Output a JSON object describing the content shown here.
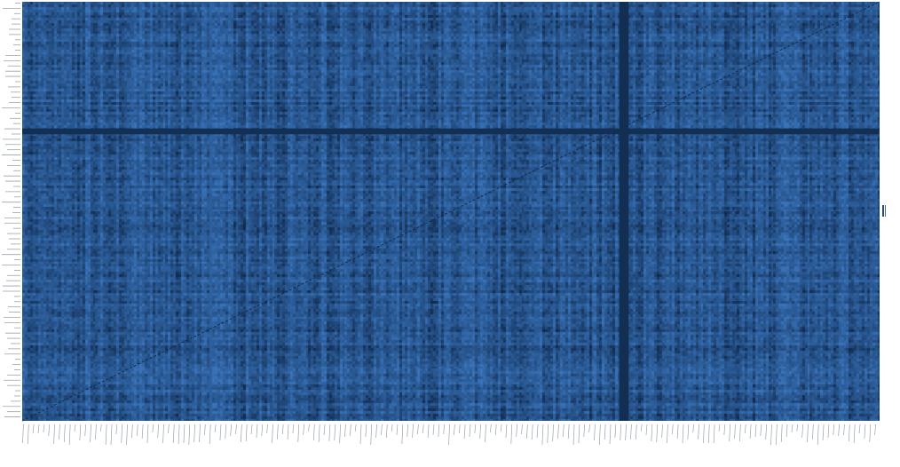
{
  "chart_data": {
    "type": "heatmap",
    "title": "",
    "xlabel": "",
    "ylabel": "",
    "n_rows": 160,
    "n_cols": 330,
    "colormap": [
      "#102a4c",
      "#1d4170",
      "#27548c",
      "#2f62a1",
      "#3a73b8"
    ],
    "dark_row_bands": [
      {
        "row_index": 49,
        "value": 0.05
      }
    ],
    "dark_column_bands": [
      {
        "col_index": 231,
        "value": 0.04
      }
    ],
    "light_column_bands": [
      {
        "col_index": 72,
        "value": 0.72
      }
    ],
    "diagonal": {
      "present": true,
      "value": 0.02,
      "from": "bottom-left",
      "to": "top-right"
    },
    "tick_labels_legible": false,
    "legend": "none"
  },
  "colors": {
    "background": "#ffffff",
    "tick_label": "#9aa3ad"
  }
}
